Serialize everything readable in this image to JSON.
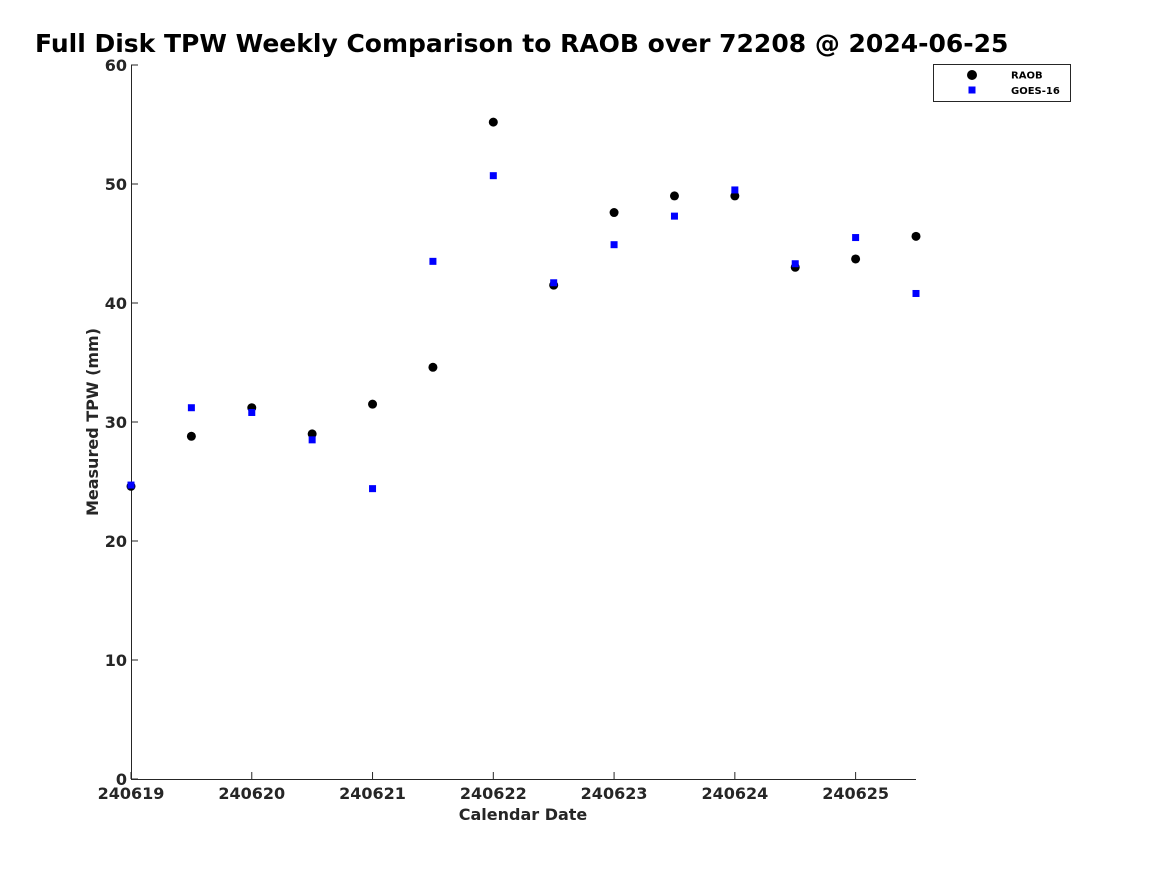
{
  "chart_data": {
    "type": "scatter",
    "title": "Full Disk TPW Weekly Comparison to RAOB over 72208 @ 2024-06-25",
    "xlabel": "Calendar Date",
    "ylabel": "Measured TPW (mm)",
    "x_ticks": [
      "240619",
      "240620",
      "240621",
      "240622",
      "240623",
      "240624",
      "240625"
    ],
    "xlim": [
      240619,
      240625.5
    ],
    "ylim": [
      0,
      60
    ],
    "y_ticks": [
      0,
      10,
      20,
      30,
      40,
      50,
      60
    ],
    "grid": false,
    "legend_position": "top-right",
    "series": [
      {
        "name": "RAOB",
        "marker": "circle",
        "color": "#000000",
        "x": [
          240619,
          240619.5,
          240620,
          240620.5,
          240621,
          240621.5,
          240622,
          240622.5,
          240623,
          240623.5,
          240624,
          240624.5,
          240625,
          240625.5
        ],
        "y": [
          24.6,
          28.8,
          31.2,
          29.0,
          31.5,
          34.6,
          55.2,
          41.5,
          47.6,
          49.0,
          49.0,
          43.0,
          43.7,
          45.6
        ]
      },
      {
        "name": "GOES-16",
        "marker": "square",
        "color": "#0000ff",
        "x": [
          240619,
          240619.5,
          240620,
          240620.5,
          240621,
          240621.5,
          240622,
          240622.5,
          240623,
          240623.5,
          240624,
          240624.5,
          240625,
          240625.5
        ],
        "y": [
          24.7,
          31.2,
          30.8,
          28.5,
          24.4,
          43.5,
          50.7,
          41.7,
          44.9,
          47.3,
          49.5,
          43.3,
          45.5,
          40.8
        ]
      }
    ]
  }
}
